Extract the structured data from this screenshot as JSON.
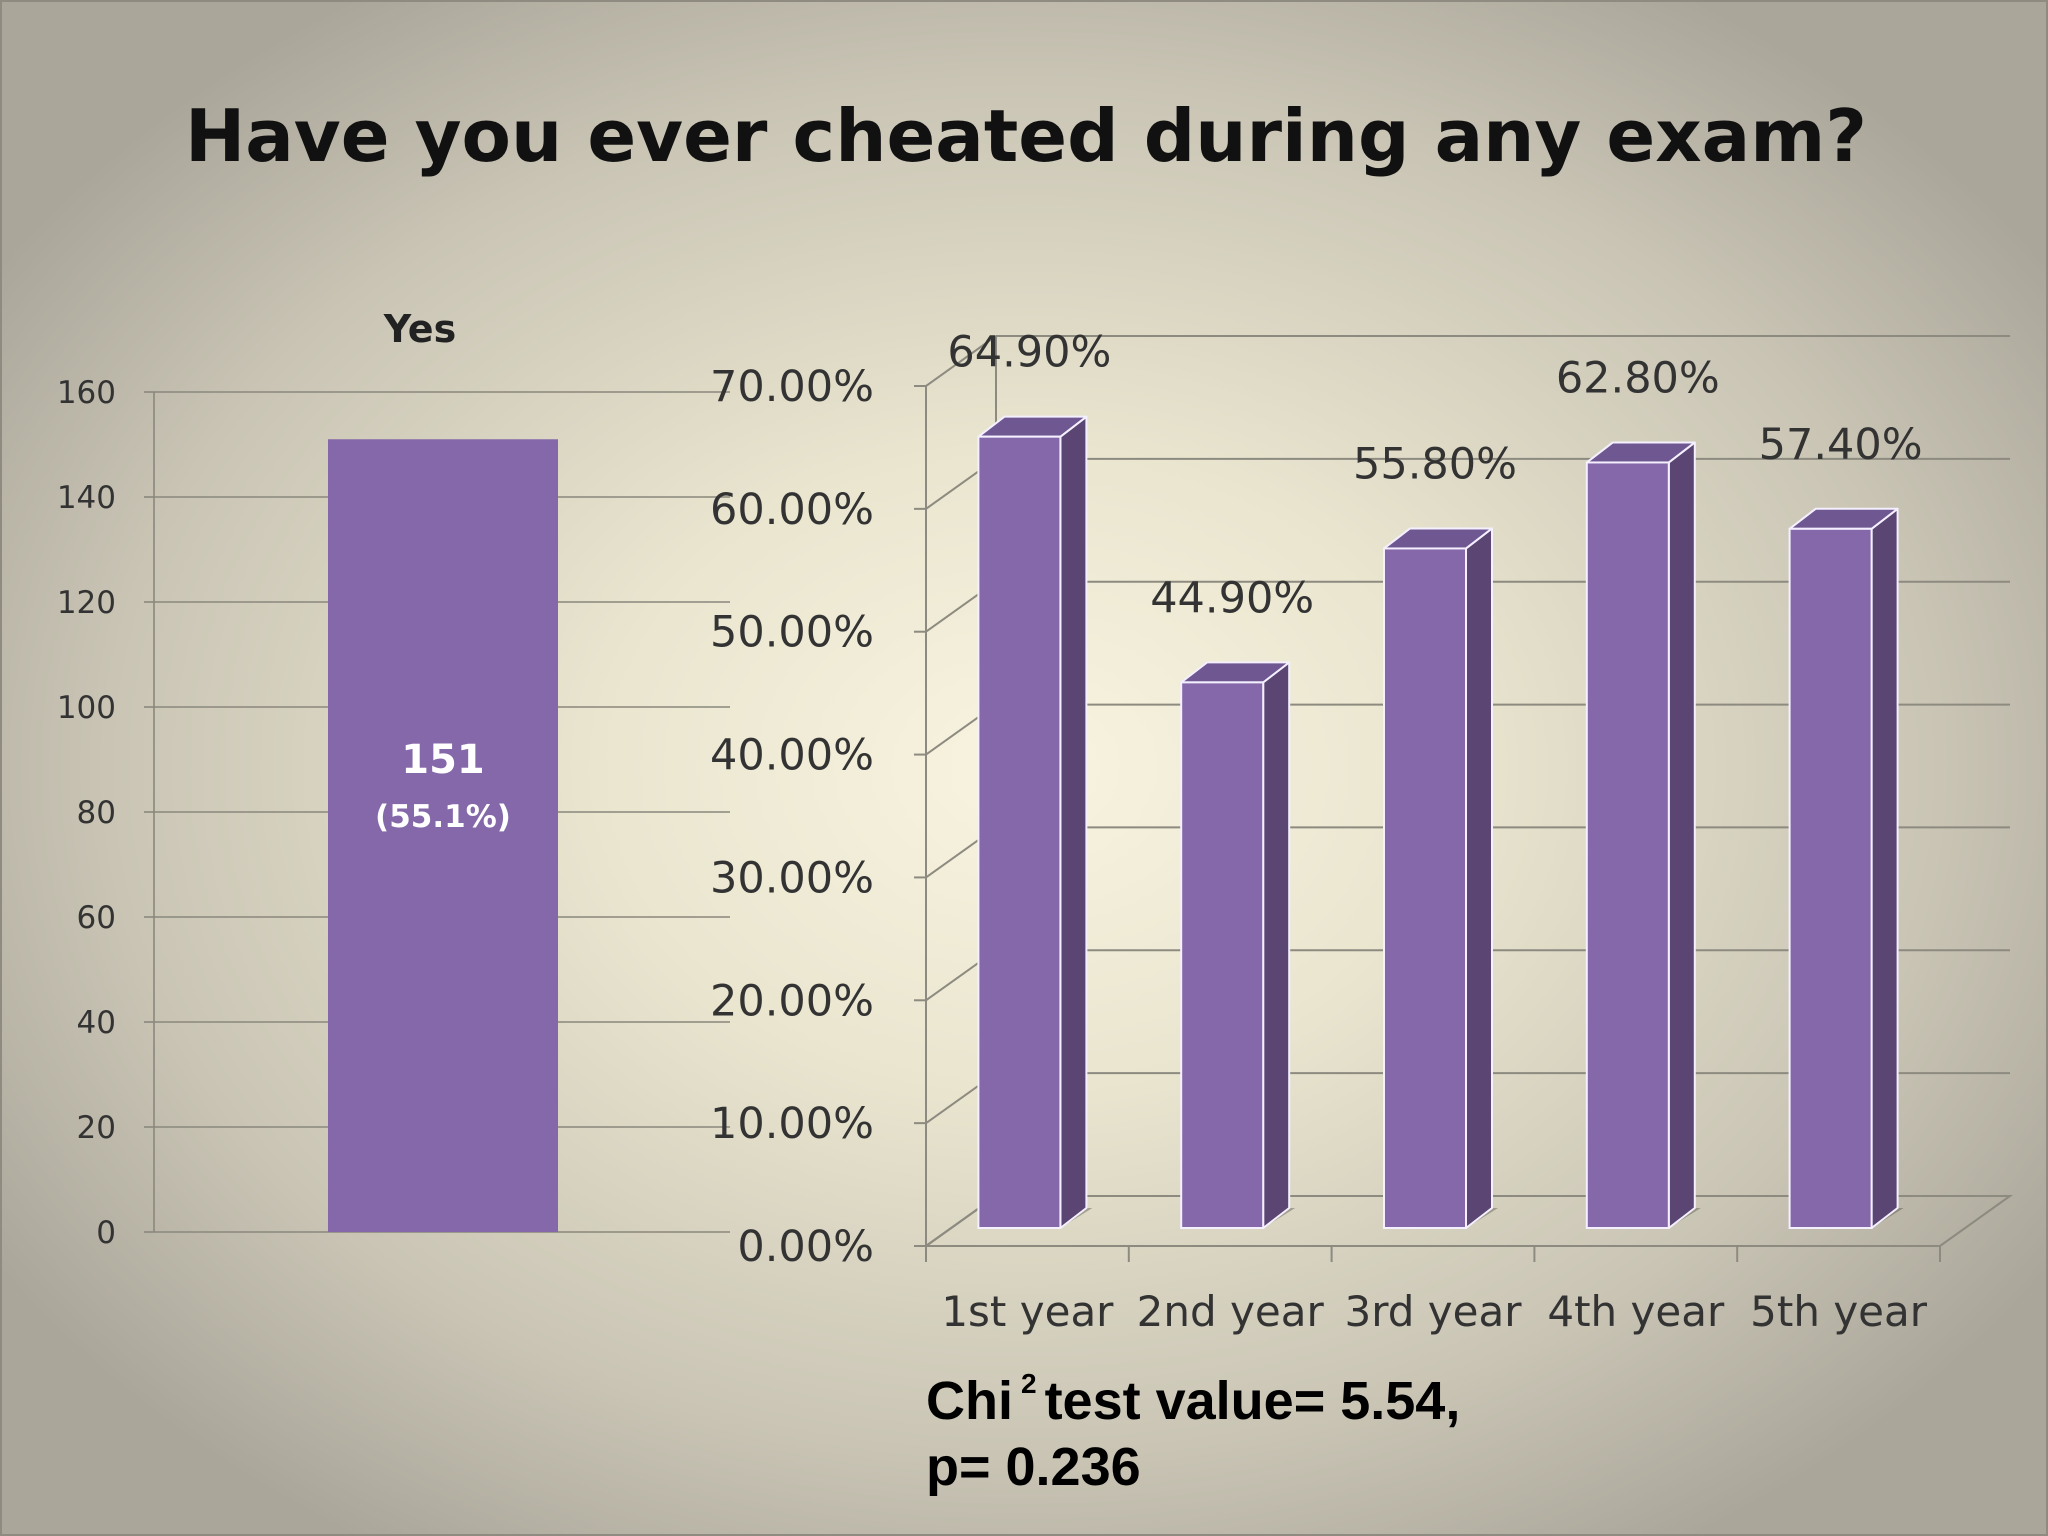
{
  "title": "Have you ever cheated during any exam?",
  "chart_data": [
    {
      "type": "bar",
      "title": "Yes",
      "categories": [
        "Yes"
      ],
      "values": [
        151
      ],
      "data_labels": [
        [
          "151",
          "(55.1%)"
        ]
      ],
      "ylim": [
        0,
        160
      ],
      "yticks": [
        0,
        20,
        40,
        60,
        80,
        100,
        120,
        140,
        160
      ],
      "ytick_labels": [
        "0",
        "20",
        "40",
        "60",
        "80",
        "100",
        "120",
        "140",
        "160"
      ],
      "grid": true,
      "color": "#8568a9"
    },
    {
      "type": "bar",
      "style": "3d-column",
      "categories": [
        "1st year",
        "2nd year",
        "3rd year",
        "4th year",
        "5th year"
      ],
      "values": [
        64.9,
        44.9,
        55.8,
        62.8,
        57.4
      ],
      "data_labels": [
        "64.90%",
        "44.90%",
        "55.80%",
        "62.80%",
        "57.40%"
      ],
      "ylim": [
        0,
        70
      ],
      "yticks": [
        0,
        10,
        20,
        30,
        40,
        50,
        60,
        70
      ],
      "ytick_labels": [
        "0.00%",
        "10.00%",
        "20.00%",
        "30.00%",
        "40.00%",
        "50.00%",
        "60.00%",
        "70.00%"
      ],
      "grid": true,
      "color": "#8568a9",
      "side_color": "#5b4673",
      "top_color": "#6f5791"
    }
  ],
  "stats": {
    "line1_before": "Chi",
    "line1_sup": "2",
    "line1_after": "test value= 5.54,",
    "line2": "p=  0.236"
  }
}
